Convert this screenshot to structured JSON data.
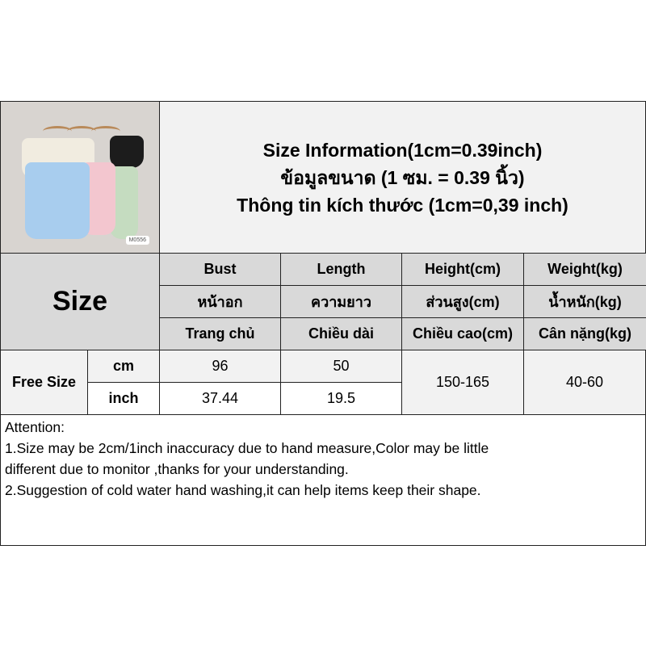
{
  "title": {
    "line1": "Size Information(1cm=0.39inch)",
    "line2": "ข้อมูลขนาด (1 ซม. = 0.39 นิ้ว)",
    "line3": "Thông tin kích thước (1cm=0,39 inch)"
  },
  "photo": {
    "tag": "M0556"
  },
  "size_label": "Size",
  "columns": [
    {
      "en": "Bust",
      "th": "หน้าอก",
      "vi": "Trang chủ"
    },
    {
      "en": "Length",
      "th": "ความยาว",
      "vi": "Chiều dài"
    },
    {
      "en": "Height(cm)",
      "th": "ส่วนสูง(cm)",
      "vi": "Chiều cao(cm)"
    },
    {
      "en": "Weight(kg)",
      "th": "น้ำหนัก(kg)",
      "vi": "Cân nặng(kg)"
    }
  ],
  "row": {
    "name": "Free Size",
    "cm": {
      "unit": "cm",
      "bust": "96",
      "length": "50"
    },
    "inch": {
      "unit": "inch",
      "bust": "37.44",
      "length": "19.5"
    },
    "height": "150-165",
    "weight": "40-60"
  },
  "attention": {
    "heading": "Attention:",
    "line1": "1.Size may be 2cm/1inch inaccuracy due to hand measure,Color may be little",
    "line2": "different due to monitor ,thanks for your understanding.",
    "line3": "2.Suggestion of cold water hand washing,it can help items keep their shape."
  }
}
